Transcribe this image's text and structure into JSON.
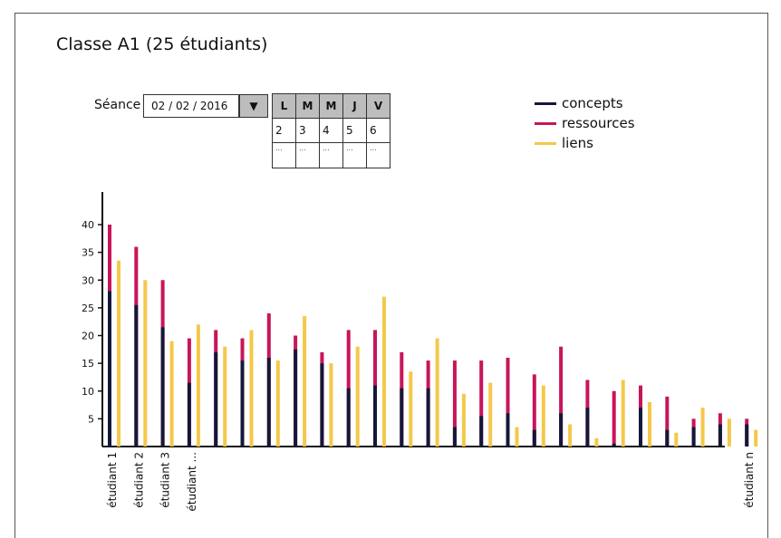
{
  "page": {
    "title": "Classe A1 (25 étudiants)"
  },
  "controls": {
    "seance_label": "Séance",
    "date_value": "02 / 02 / 2016",
    "dropdown_icon": "▼",
    "calendar": {
      "headers": [
        "L",
        "M",
        "M",
        "J",
        "V"
      ],
      "dates": [
        "2",
        "3",
        "4",
        "5",
        "6"
      ],
      "placeholder": "..."
    }
  },
  "chart_data": {
    "type": "bar",
    "title": "",
    "xlabel": "",
    "ylabel": "",
    "ylim": [
      0,
      45
    ],
    "yticks": [
      5,
      10,
      15,
      20,
      25,
      30,
      35,
      40
    ],
    "grid": false,
    "legend_position": "top-right",
    "categories": [
      "étudiant 1",
      "étudiant 2",
      "étudiant 3",
      "étudiant ...",
      "",
      "",
      "",
      "",
      "",
      "",
      "",
      "",
      "",
      "",
      "",
      "",
      "",
      "",
      "",
      "",
      "",
      "",
      "",
      "",
      "étudiant n"
    ],
    "series": [
      {
        "name": "concepts",
        "color": "#14183a",
        "values": [
          28,
          25.5,
          21.5,
          11.5,
          17,
          15.5,
          16,
          17.5,
          15,
          10.5,
          11,
          10.5,
          10.5,
          3.5,
          5.5,
          6,
          3,
          6,
          7,
          0.5,
          7,
          3,
          3.5,
          4,
          4
        ]
      },
      {
        "name": "ressources",
        "color": "#c8155a",
        "values": [
          40,
          36,
          30,
          19.5,
          21,
          19.5,
          24,
          20,
          17,
          21,
          21,
          17,
          15.5,
          15.5,
          15.5,
          16,
          13,
          18,
          12,
          10,
          11,
          9,
          5,
          6,
          5
        ]
      },
      {
        "name": "liens",
        "color": "#f5c84a",
        "values": [
          33.5,
          30,
          19,
          22,
          18,
          21,
          15.5,
          23.5,
          15,
          18,
          27,
          13.5,
          19.5,
          9.5,
          11.5,
          3.5,
          11,
          4,
          1.5,
          12,
          8,
          2.5,
          7,
          5,
          3
        ]
      }
    ]
  }
}
